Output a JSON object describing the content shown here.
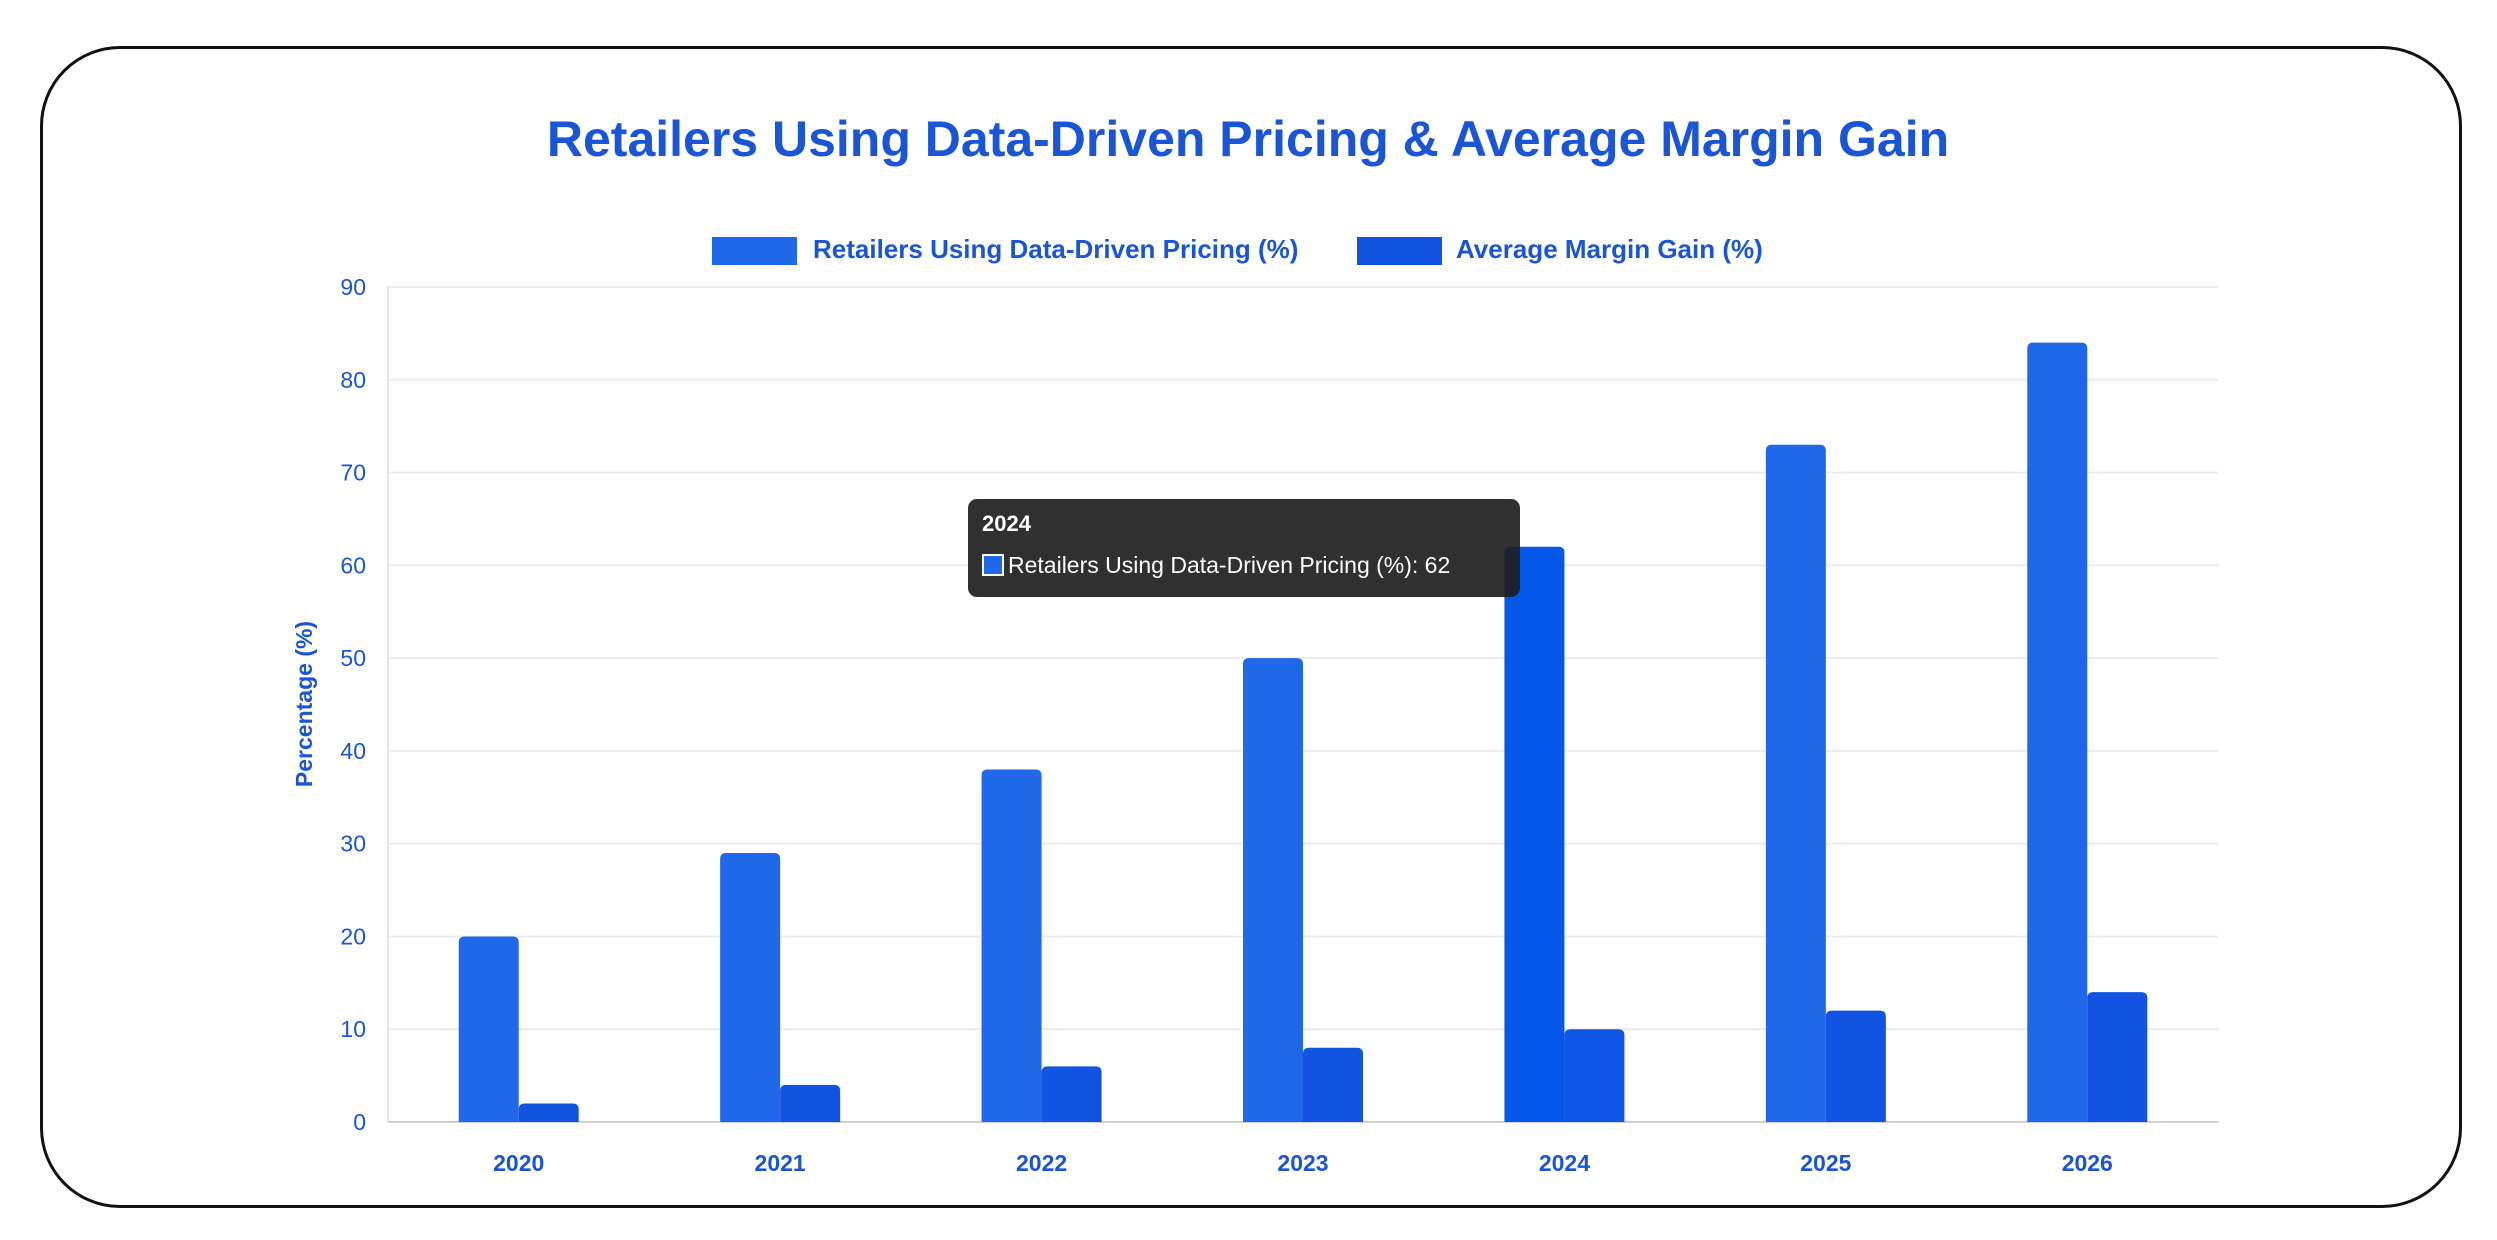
{
  "chart_data": {
    "type": "bar",
    "title": "Retailers Using Data-Driven Pricing & Average Margin Gain",
    "xlabel": "",
    "ylabel": "Percentage (%)",
    "categories": [
      "2020",
      "2021",
      "2022",
      "2023",
      "2024",
      "2025",
      "2026"
    ],
    "series": [
      {
        "name": "Retailers Using Data-Driven Pricing (%)",
        "values": [
          20,
          29,
          38,
          50,
          62,
          73,
          84
        ],
        "color": "#1f68ea"
      },
      {
        "name": "Average Margin Gain (%)",
        "values": [
          2,
          4,
          6,
          8,
          10,
          12,
          14
        ],
        "color": "#1154e2"
      }
    ],
    "ylim": [
      0,
      90
    ],
    "yticks": [
      "0",
      "10",
      "20",
      "30",
      "40",
      "50",
      "60",
      "70",
      "80",
      "90"
    ],
    "grid": true,
    "legend_position": "top-center",
    "highlight_color": "#0457e8",
    "highlight_color_2": "#0f55e6",
    "text_color": "#1a55d6",
    "tooltip": {
      "title": "2024",
      "label": "Retailers Using Data-Driven Pricing (%): 62"
    }
  }
}
